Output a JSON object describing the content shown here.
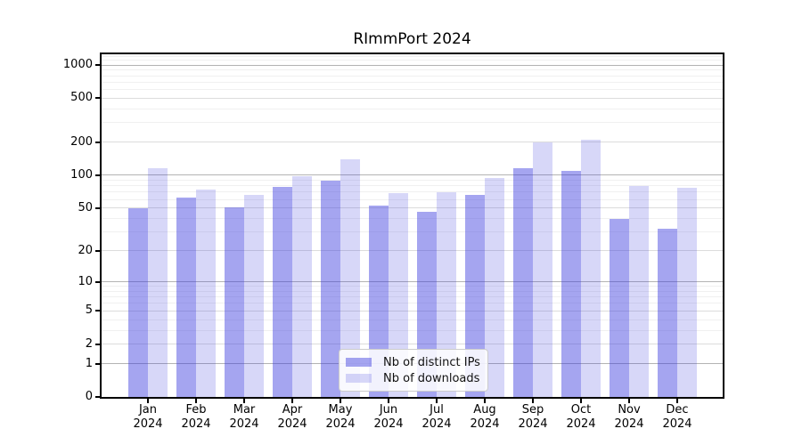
{
  "title": "RImmPort 2024",
  "chart_data": {
    "type": "bar",
    "title": "RImmPort 2024",
    "categories": [
      "Jan",
      "Feb",
      "Mar",
      "Apr",
      "May",
      "Jun",
      "Jul",
      "Aug",
      "Sep",
      "Oct",
      "Nov",
      "Dec"
    ],
    "year": "2024",
    "series": [
      {
        "name": "Nb of distinct IPs",
        "fill": "rgba(55,55,222,0.45)",
        "hex_on_white": "#a5a5f0",
        "values": [
          50,
          63,
          51,
          78,
          89,
          53,
          46,
          66,
          115,
          110,
          40,
          32
        ]
      },
      {
        "name": "Nb of downloads",
        "fill": "rgba(55,55,222,0.20)",
        "hex_on_white": "#d8d8f8",
        "values": [
          115,
          74,
          66,
          97,
          140,
          68,
          70,
          95,
          200,
          210,
          80,
          77
        ]
      }
    ],
    "y_ticks": [
      0,
      1,
      2,
      5,
      10,
      20,
      50,
      100,
      200,
      500,
      1000
    ],
    "y_major_ticks": [
      1,
      10,
      100,
      1000
    ],
    "y_minor_ticks": [
      3,
      4,
      6,
      7,
      8,
      9,
      30,
      40,
      60,
      70,
      80,
      90,
      300,
      400,
      600,
      700,
      800,
      900,
      1100,
      1200
    ],
    "y_scale": "log1p",
    "ylim": [
      0,
      1250
    ],
    "xlabel": "",
    "ylabel": "",
    "grid": true,
    "legend_position": "lower center",
    "colors": {
      "bar_base": "#3737de",
      "grid_major": "#b3b3b3",
      "grid_medium": "#dcdcdc",
      "grid_minor": "#f0f0f0",
      "spine": "#000000",
      "legend_border": "#cccccc",
      "background": "#ffffff"
    }
  }
}
